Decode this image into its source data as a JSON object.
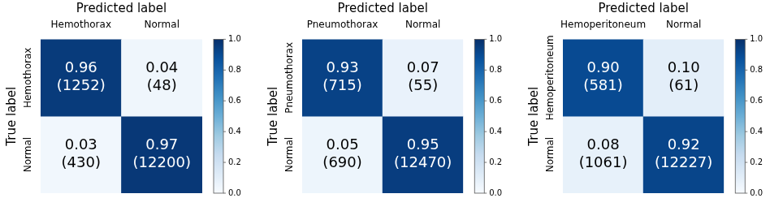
{
  "chart_data": [
    {
      "type": "heatmap",
      "x_label": "Predicted label",
      "y_label": "True label",
      "x_categories": [
        "Hemothorax",
        "Normal"
      ],
      "y_categories": [
        "Hemothorax",
        "Normal"
      ],
      "values": [
        [
          0.96,
          0.04
        ],
        [
          0.03,
          0.97
        ]
      ],
      "value_labels": [
        [
          "0.96",
          "0.04"
        ],
        [
          "0.03",
          "0.97"
        ]
      ],
      "counts": [
        [
          1252,
          48
        ],
        [
          430,
          12200
        ]
      ],
      "data_labels": true,
      "colorbar_range": [
        0,
        1
      ],
      "colorbar_ticks": [
        {
          "value": 0,
          "label": "0.0"
        },
        {
          "value": 0.2,
          "label": "0.2"
        },
        {
          "value": 0.4,
          "label": "0.4"
        },
        {
          "value": 0.6,
          "label": "0.6"
        },
        {
          "value": 0.8,
          "label": "0.8"
        },
        {
          "value": 1,
          "label": "1.0"
        }
      ]
    },
    {
      "type": "heatmap",
      "x_label": "Predicted label",
      "y_label": "True label",
      "x_categories": [
        "Pneumothorax",
        "Normal"
      ],
      "y_categories": [
        "Pneumothorax",
        "Normal"
      ],
      "values": [
        [
          0.93,
          0.07
        ],
        [
          0.05,
          0.95
        ]
      ],
      "value_labels": [
        [
          "0.93",
          "0.07"
        ],
        [
          "0.05",
          "0.95"
        ]
      ],
      "counts": [
        [
          715,
          55
        ],
        [
          690,
          12470
        ]
      ],
      "data_labels": true,
      "colorbar_range": [
        0,
        1
      ],
      "colorbar_ticks": [
        {
          "value": 0,
          "label": "0.0"
        },
        {
          "value": 0.2,
          "label": "0.2"
        },
        {
          "value": 0.4,
          "label": "0.4"
        },
        {
          "value": 0.6,
          "label": "0.6"
        },
        {
          "value": 0.8,
          "label": "0.8"
        },
        {
          "value": 1,
          "label": "1.0"
        }
      ]
    },
    {
      "type": "heatmap",
      "x_label": "Predicted label",
      "y_label": "True label",
      "x_categories": [
        "Hemoperitoneum",
        "Normal"
      ],
      "y_categories": [
        "Hemoperitoneum",
        "Normal"
      ],
      "values": [
        [
          0.9,
          0.1
        ],
        [
          0.08,
          0.92
        ]
      ],
      "value_labels": [
        [
          "0.90",
          "0.10"
        ],
        [
          "0.08",
          "0.92"
        ]
      ],
      "counts": [
        [
          581,
          61
        ],
        [
          1061,
          12227
        ]
      ],
      "data_labels": true,
      "colorbar_range": [
        0,
        1
      ],
      "colorbar_ticks": [
        {
          "value": 0,
          "label": "0.0"
        },
        {
          "value": 0.2,
          "label": "0.2"
        },
        {
          "value": 0.4,
          "label": "0.4"
        },
        {
          "value": 0.6,
          "label": "0.6"
        },
        {
          "value": 0.8,
          "label": "0.8"
        },
        {
          "value": 1,
          "label": "1.0"
        }
      ]
    }
  ]
}
